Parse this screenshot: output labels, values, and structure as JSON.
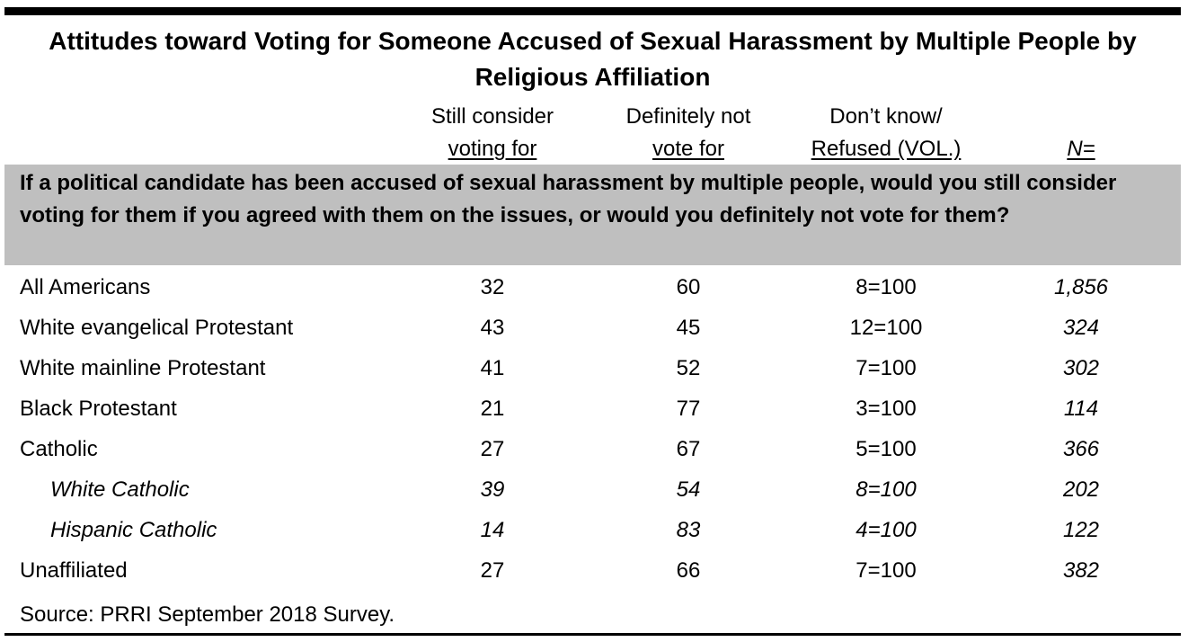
{
  "chart_data": {
    "type": "table",
    "title": "Attitudes toward Voting for Someone Accused of Sexual Harassment by Multiple People by Religious Affiliation",
    "columns": [
      {
        "line1": "Still consider",
        "line2": "voting for"
      },
      {
        "line1": "Definitely not",
        "line2": "vote for"
      },
      {
        "line1": "Don’t know/",
        "line2": "Refused (VOL.)"
      },
      {
        "line1": "",
        "line2": "N="
      }
    ],
    "question": "If a political candidate has been accused of sexual harassment by multiple people, would you still consider voting for them if you agreed with them on the issues, or would you definitely not vote for them?",
    "rows": [
      {
        "label": "All Americans",
        "values": [
          "32",
          "60",
          "8=100",
          "1,856"
        ]
      },
      {
        "label": "White evangelical Protestant",
        "values": [
          "43",
          "45",
          "12=100",
          "324"
        ]
      },
      {
        "label": "White mainline Protestant",
        "values": [
          "41",
          "52",
          "7=100",
          "302"
        ]
      },
      {
        "label": "Black Protestant",
        "values": [
          "21",
          "77",
          "3=100",
          "114"
        ]
      },
      {
        "label": "Catholic",
        "values": [
          "27",
          "67",
          "5=100",
          "366"
        ]
      },
      {
        "label": "White Catholic",
        "values": [
          "39",
          "54",
          "8=100",
          "202"
        ]
      },
      {
        "label": "Hispanic Catholic",
        "values": [
          "14",
          "83",
          "4=100",
          "122"
        ]
      },
      {
        "label": "Unaffiliated",
        "values": [
          "27",
          "66",
          "7=100",
          "382"
        ]
      }
    ],
    "source": "Source: PRRI September 2018 Survey."
  }
}
